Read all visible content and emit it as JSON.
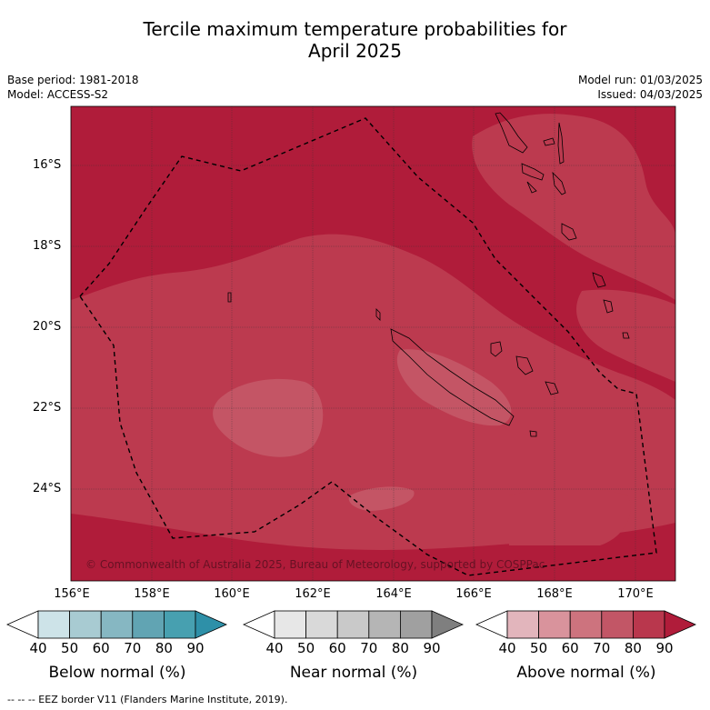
{
  "title_line1": "Tercile maximum temperature probabilities for",
  "title_line2": "April 2025",
  "base_period": "Base period: 1981-2018",
  "model": "Model: ACCESS-S2",
  "model_run": "Model run: 01/03/2025",
  "issued": "Issued: 04/03/2025",
  "copyright": "© Commonwealth of Australia 2025, Bureau of Meteorology, supported by COSPPac",
  "lat_labels": [
    "16°S",
    "18°S",
    "20°S",
    "22°S",
    "24°S"
  ],
  "lon_labels": [
    "156°E",
    "158°E",
    "160°E",
    "162°E",
    "164°E",
    "166°E",
    "168°E",
    "170°E"
  ],
  "colorbars": [
    {
      "label": "Below normal (%)",
      "ticks": [
        "40",
        "50",
        "60",
        "70",
        "80",
        "90"
      ],
      "colors": [
        "#ffffff",
        "#cde3e8",
        "#a8cbd2",
        "#86b7c2",
        "#61a4b3",
        "#47a0b0",
        "#2e90a8"
      ]
    },
    {
      "label": "Near normal (%)",
      "ticks": [
        "40",
        "50",
        "60",
        "70",
        "80",
        "90"
      ],
      "colors": [
        "#ffffff",
        "#e7e7e7",
        "#d9d9d9",
        "#c9c9c9",
        "#b5b5b5",
        "#a0a0a0",
        "#7f7f7f"
      ]
    },
    {
      "label": "Above normal (%)",
      "ticks": [
        "40",
        "50",
        "60",
        "70",
        "80",
        "90"
      ],
      "colors": [
        "#ffffff",
        "#e2b5bc",
        "#d9939c",
        "#cd737e",
        "#c25666",
        "#b9374d",
        "#b01c3a"
      ]
    }
  ],
  "legend_footnote": "--  --  -- EEZ border V11 (Flanders Marine Institute, 2019).",
  "map_colors": {
    "p80_90": "#b01c3a",
    "p70_80": "#bc3a4f",
    "p60_70": "#c45565"
  }
}
